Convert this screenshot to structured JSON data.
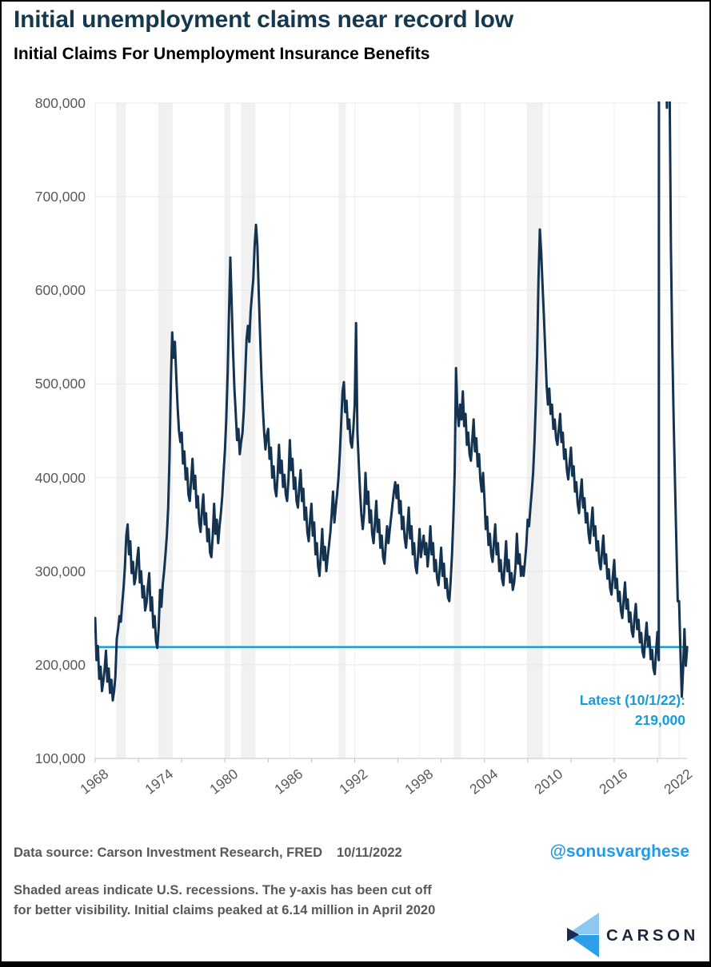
{
  "header": {
    "title": "Initial unemployment claims near record low",
    "subtitle": "Initial Claims For Unemployment Insurance Benefits"
  },
  "annotation": {
    "line1": "Latest (10/1/22):",
    "line2": "219,000"
  },
  "footer": {
    "data_source": "Data source: Carson Investment Research, FRED",
    "date": "10/11/2022",
    "handle": "@sonusvarghese",
    "note_line1": "Shaded areas indicate U.S. recessions. The y-axis has been cut off",
    "note_line2": "for better visibility. Initial claims peaked at 6.14 million in April 2020",
    "logo_text": "CARSON"
  },
  "colors": {
    "title_navy": "#16384F",
    "line_navy": "#133350",
    "accent_blue": "#189CD8",
    "handle_blue": "#1E9BE9",
    "text_gray": "#595959",
    "band_gray": "#F1F1F1",
    "grid_gray": "#E8E8E8",
    "vgrid_gray": "#F0F0F0",
    "axis_gray": "#CFCFCF",
    "tick_gray": "#BFBFBF",
    "logo_light_blue": "#8EC8F0",
    "logo_blue": "#2D9EE8",
    "logo_navy": "#1C2B4D"
  },
  "chart_data": {
    "type": "line",
    "title": "Initial Claims For Unemployment Insurance Benefits",
    "xlabel": "",
    "ylabel": "",
    "x_domain": [
      1968,
      2022.83
    ],
    "ylim": [
      100000,
      800000
    ],
    "y_axis_note": "y-axis cut off at 800,000 for visibility; actual April 2020 peak 6.14 million",
    "y_tick_labels": [
      "100,000",
      "200,000",
      "300,000",
      "400,000",
      "500,000",
      "600,000",
      "700,000",
      "800,000"
    ],
    "x_tick_years": [
      1968,
      1974,
      1980,
      1986,
      1992,
      1998,
      2004,
      2010,
      2016,
      2022
    ],
    "grid": true,
    "legend": "none",
    "reference_line_value_thousands": 219,
    "latest": {
      "date": "10/1/22",
      "value": 219000
    },
    "recessions_shaded_year_ranges": [
      [
        1969.92,
        1970.83
      ],
      [
        1973.83,
        1975.17
      ],
      [
        1980.0,
        1980.5
      ],
      [
        1981.5,
        1982.83
      ],
      [
        1990.5,
        1991.17
      ],
      [
        2001.17,
        2001.83
      ],
      [
        2007.92,
        2009.42
      ],
      [
        2020.08,
        2020.33
      ]
    ],
    "series": {
      "name": "Initial claims for unemployment insurance",
      "units": "thousands of claims",
      "start_year": 1968,
      "step_years": 0.125,
      "values_thousands": [
        250,
        205,
        220,
        185,
        198,
        172,
        182,
        195,
        215,
        182,
        196,
        170,
        184,
        162,
        172,
        188,
        228,
        238,
        252,
        246,
        265,
        282,
        305,
        338,
        350,
        318,
        332,
        298,
        310,
        286,
        294,
        312,
        325,
        288,
        300,
        272,
        284,
        258,
        266,
        284,
        298,
        258,
        272,
        240,
        252,
        225,
        218,
        240,
        280,
        262,
        286,
        300,
        318,
        338,
        368,
        420,
        500,
        555,
        528,
        545,
        508,
        475,
        450,
        438,
        448,
        415,
        428,
        398,
        410,
        382,
        375,
        398,
        420,
        388,
        402,
        368,
        380,
        352,
        342,
        365,
        382,
        350,
        362,
        332,
        345,
        320,
        315,
        338,
        372,
        340,
        355,
        330,
        348,
        362,
        380,
        405,
        428,
        462,
        510,
        575,
        635,
        585,
        535,
        495,
        468,
        440,
        452,
        425,
        438,
        448,
        472,
        510,
        548,
        562,
        545,
        578,
        595,
        612,
        648,
        670,
        648,
        598,
        552,
        508,
        475,
        448,
        430,
        445,
        452,
        420,
        432,
        400,
        412,
        388,
        380,
        402,
        435,
        405,
        418,
        390,
        403,
        382,
        375,
        398,
        440,
        408,
        420,
        388,
        400,
        375,
        368,
        390,
        408,
        375,
        388,
        355,
        368,
        342,
        332,
        355,
        372,
        338,
        352,
        318,
        330,
        305,
        295,
        318,
        345,
        312,
        326,
        300,
        315,
        328,
        342,
        362,
        385,
        352,
        368,
        382,
        400,
        425,
        458,
        492,
        502,
        470,
        482,
        452,
        462,
        438,
        432,
        452,
        478,
        565,
        448,
        415,
        385,
        360,
        345,
        362,
        405,
        372,
        385,
        352,
        365,
        340,
        330,
        352,
        375,
        342,
        355,
        325,
        338,
        315,
        308,
        328,
        348,
        330,
        345,
        358,
        372,
        385,
        395,
        378,
        392,
        362,
        375,
        345,
        358,
        335,
        325,
        345,
        368,
        335,
        348,
        318,
        330,
        305,
        298,
        320,
        345,
        315,
        328,
        338,
        318,
        330,
        305,
        322,
        348,
        318,
        330,
        300,
        312,
        292,
        285,
        305,
        325,
        295,
        308,
        282,
        292,
        272,
        268,
        290,
        318,
        355,
        405,
        517,
        472,
        455,
        478,
        462,
        492,
        455,
        468,
        435,
        448,
        425,
        418,
        440,
        462,
        428,
        442,
        412,
        425,
        398,
        385,
        405,
        378,
        345,
        358,
        328,
        340,
        318,
        310,
        330,
        350,
        318,
        330,
        300,
        312,
        292,
        285,
        308,
        332,
        300,
        312,
        288,
        298,
        280,
        288,
        305,
        340,
        308,
        318,
        295,
        305,
        295,
        310,
        328,
        355,
        348,
        368,
        385,
        405,
        438,
        478,
        530,
        612,
        665,
        640,
        605,
        572,
        535,
        498,
        478,
        495,
        468,
        478,
        452,
        462,
        442,
        435,
        452,
        468,
        438,
        448,
        420,
        430,
        408,
        398,
        415,
        432,
        402,
        412,
        385,
        395,
        372,
        362,
        382,
        398,
        368,
        378,
        352,
        362,
        340,
        330,
        350,
        368,
        338,
        348,
        322,
        332,
        310,
        302,
        322,
        338,
        308,
        318,
        292,
        302,
        282,
        275,
        295,
        312,
        282,
        292,
        268,
        278,
        258,
        250,
        270,
        288,
        260,
        270,
        246,
        256,
        236,
        230,
        250,
        265,
        238,
        248,
        224,
        234,
        214,
        208,
        228,
        245,
        220,
        230,
        206,
        216,
        196,
        190,
        215,
        235,
        205,
        6100,
        3200,
        1450,
        1050,
        860,
        795,
        1150,
        812,
        645,
        540,
        462,
        395,
        330,
        268,
        268,
        215,
        166,
        195,
        238,
        199,
        219
      ]
    }
  }
}
